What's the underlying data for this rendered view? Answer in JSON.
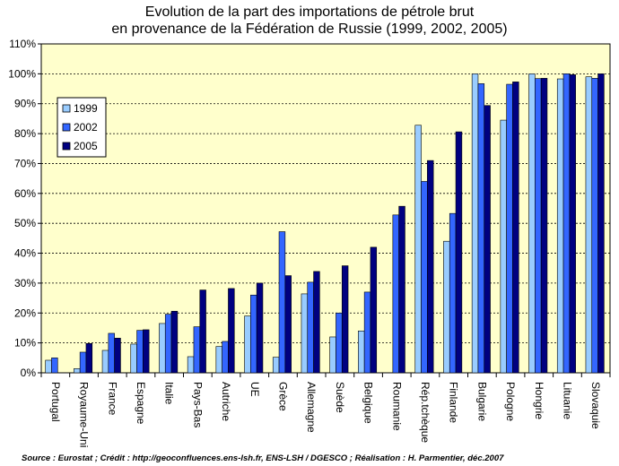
{
  "chart_data": {
    "type": "bar",
    "title_line1": "Evolution de la part des importations de pétrole brut",
    "title_line2": "en provenance de la Fédération de Russie (1999, 2002, 2005)",
    "source": "Source : Eurostat ; Crédit : http://geoconfluences.ens-lsh.fr, ENS-LSH / DGESCO ; Réalisation : H. Parmentier,  déc.2007",
    "ylim": [
      0,
      110
    ],
    "yticks": [
      0,
      10,
      20,
      30,
      40,
      50,
      60,
      70,
      80,
      90,
      100,
      110
    ],
    "ytick_labels": [
      "0%",
      "10%",
      "20%",
      "30%",
      "40%",
      "50%",
      "60%",
      "70%",
      "80%",
      "90%",
      "100%",
      "110%"
    ],
    "grid": "horizontal dashed",
    "legend_position": "left",
    "categories": [
      "Portugal",
      "Royaume-Uni",
      "France",
      "Espagne",
      "Italie",
      "Pays-Bas",
      "Autriche",
      "UE",
      "Grèce",
      "Allemagne",
      "Suède",
      "Belgique",
      "Roumanie",
      "Rép.tchèque",
      "Finlande",
      "Bulgarie",
      "Pologne",
      "Hongrie",
      "Lituanie",
      "Slovaquie"
    ],
    "series": [
      {
        "name": "1999",
        "color": "#99ccff",
        "values": [
          4.2,
          1.4,
          7.5,
          9.6,
          16.5,
          5.4,
          8.8,
          19.0,
          5.2,
          26.4,
          12.0,
          14.0,
          null,
          82.8,
          44.0,
          100.0,
          84.5,
          100.0,
          98.3,
          99.0
        ]
      },
      {
        "name": "2002",
        "color": "#3366ff",
        "values": [
          5.0,
          6.9,
          13.2,
          14.2,
          19.6,
          15.4,
          10.5,
          26.0,
          47.2,
          30.3,
          20.0,
          27.0,
          52.8,
          64.0,
          53.3,
          96.7,
          96.5,
          98.4,
          100.0,
          98.5
        ]
      },
      {
        "name": "2005",
        "color": "#000080",
        "values": [
          null,
          9.8,
          11.6,
          14.4,
          20.6,
          27.7,
          28.2,
          30.0,
          32.5,
          33.9,
          35.8,
          42.0,
          55.7,
          71.0,
          80.6,
          89.4,
          97.3,
          98.5,
          99.7,
          100.0
        ]
      }
    ]
  }
}
